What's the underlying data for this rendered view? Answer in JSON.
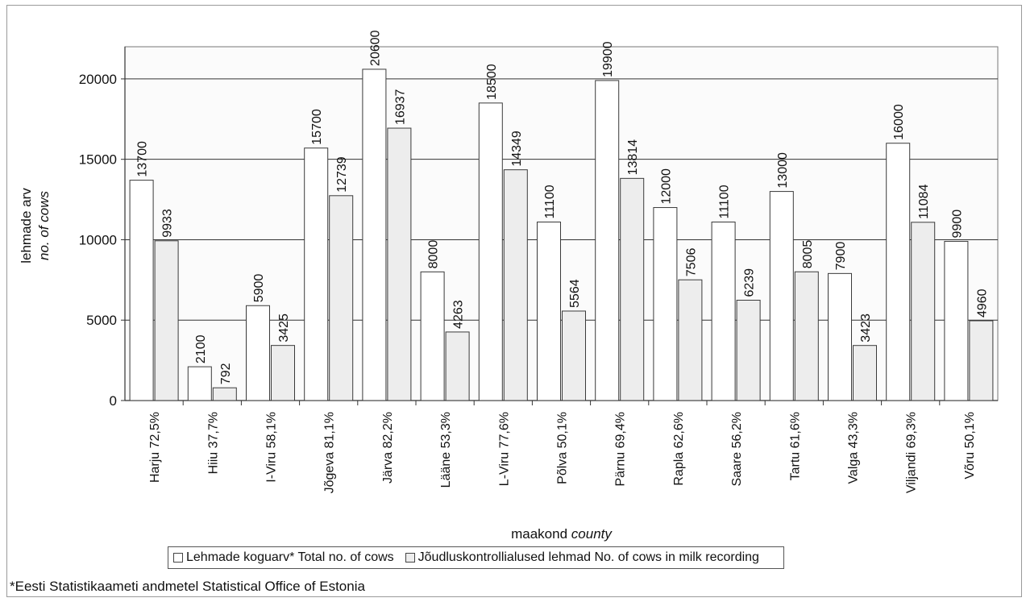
{
  "chart_data": {
    "type": "bar",
    "categories": [
      "Harju 72,5%",
      "Hiiu 37,7%",
      "I-Viru 58,1%",
      "Jõgeva 81,1%",
      "Järva 82,2%",
      "Lääne 53,3%",
      "L-Viru 77,6%",
      "Põlva 50,1%",
      "Pärnu 69,4%",
      "Rapla 62,6%",
      "Saare 56,2%",
      "Tartu 61,6%",
      "Valga 43,3%",
      "Viljandi 69,3%",
      "Võru 50,1%"
    ],
    "series": [
      {
        "name": "Lehmade koguarv* Total no. of cows",
        "color": "#ffffff",
        "values": [
          13700,
          2100,
          5900,
          15700,
          20600,
          8000,
          18500,
          11100,
          19900,
          12000,
          11100,
          13000,
          7900,
          16000,
          9900
        ]
      },
      {
        "name": "Jõudluskontrollialused lehmad No. of cows in milk recording",
        "color": "#ededed",
        "values": [
          9933,
          792,
          3425,
          12739,
          16937,
          4263,
          14349,
          5564,
          13814,
          7506,
          6239,
          8005,
          3423,
          11084,
          4960
        ]
      }
    ],
    "ylabel_line1": "lehmade arv",
    "ylabel_line2": "no. of cows",
    "xlabel_main": "maakond",
    "xlabel_italic": "county",
    "ylim": [
      0,
      22000
    ],
    "yticks": [
      0,
      5000,
      10000,
      15000,
      20000
    ],
    "grid": true,
    "legend_position": "bottom",
    "footnote": "*Eesti Statistikaameti andmetel Statistical Office of Estonia"
  }
}
